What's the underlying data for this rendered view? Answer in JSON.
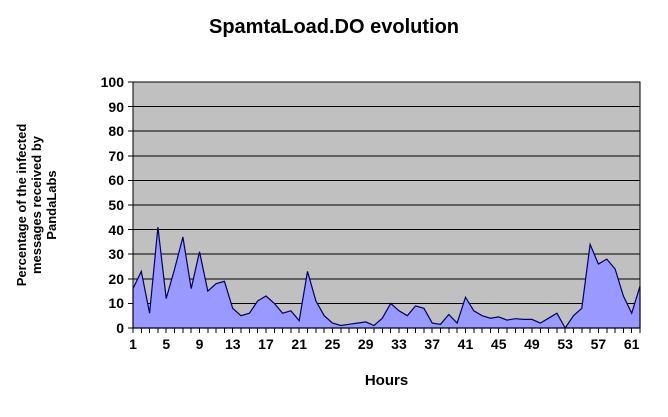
{
  "title": "SpamtaLoad.DO evolution",
  "y_axis": {
    "label_lines": [
      "Percentage of the infected",
      "messages received by",
      "PandaLabs"
    ]
  },
  "x_axis": {
    "label": "Hours"
  },
  "chart_data": {
    "type": "area",
    "title": "SpamtaLoad.DO evolution",
    "xlabel": "Hours",
    "ylabel": "Percentage of the infected messages received by PandaLabs",
    "x": [
      1,
      2,
      3,
      4,
      5,
      6,
      7,
      8,
      9,
      10,
      11,
      12,
      13,
      14,
      15,
      16,
      17,
      18,
      19,
      20,
      21,
      22,
      23,
      24,
      25,
      26,
      27,
      28,
      29,
      30,
      31,
      32,
      33,
      34,
      35,
      36,
      37,
      38,
      39,
      40,
      41,
      42,
      43,
      44,
      45,
      46,
      47,
      48,
      49,
      50,
      51,
      52,
      53,
      54,
      55,
      56,
      57,
      58,
      59,
      60,
      61,
      62
    ],
    "values": [
      16,
      23,
      6,
      41,
      12,
      24,
      37,
      16,
      31,
      15,
      18,
      19,
      8,
      5,
      6,
      11,
      13,
      10,
      6,
      7,
      3,
      23,
      11,
      5,
      2,
      1,
      1.5,
      2,
      2.5,
      1,
      4,
      10,
      7,
      5,
      9,
      8,
      2,
      1.5,
      5.5,
      2,
      12.5,
      7,
      5,
      4,
      4.5,
      3.2,
      3.8,
      3.5,
      3.5,
      2,
      4,
      6,
      0,
      5,
      8,
      34,
      26,
      28,
      24,
      13,
      6,
      17
    ],
    "ylim": [
      0,
      100
    ],
    "y_ticks": [
      100,
      90,
      80,
      70,
      60,
      50,
      40,
      30,
      20,
      10,
      0
    ],
    "x_tick_labels": [
      1,
      5,
      9,
      13,
      17,
      21,
      25,
      29,
      33,
      37,
      41,
      45,
      49,
      53,
      57,
      61
    ],
    "legend": "none",
    "grid": "horizontal",
    "colors": {
      "page_bg": "#ffffff",
      "plot_bg": "#c0c0c0",
      "area_fill": "#9999ff",
      "area_stroke": "#000060",
      "grid": "#000000",
      "axis": "#000000",
      "text": "#000000"
    }
  }
}
